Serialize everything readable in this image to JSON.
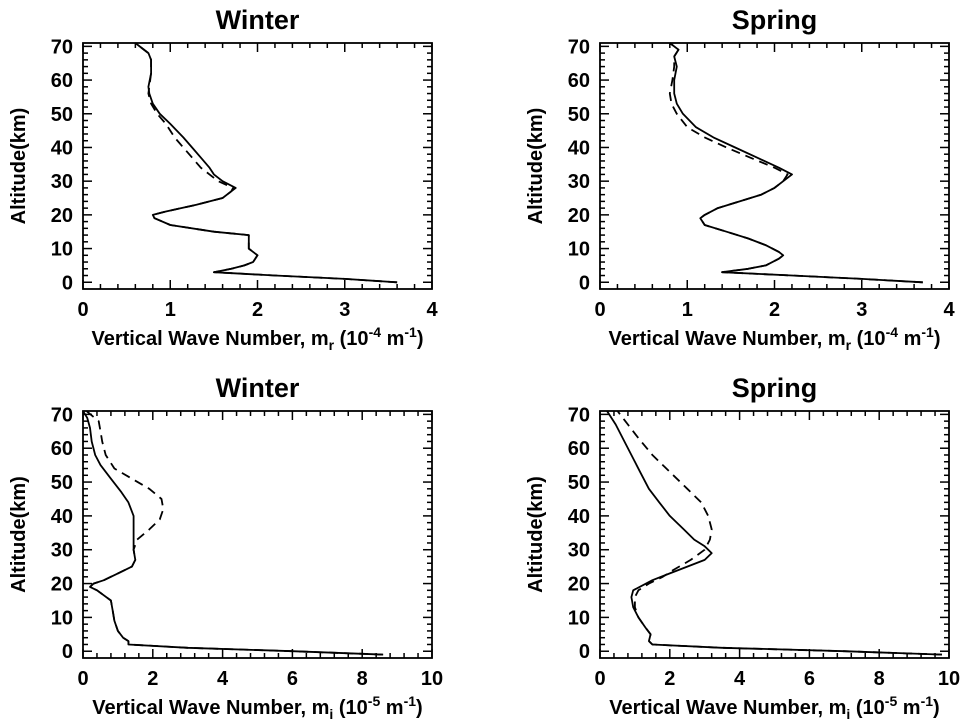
{
  "chart_data": [
    {
      "type": "line",
      "title": "Winter",
      "xlabel": {
        "main": "Vertical Wave Number, m",
        "sub": "r",
        "unit_open": " (10",
        "unit_exp": "-4",
        "unit_mid": " m",
        "unit_exp2": "-1",
        "unit_close": ")"
      },
      "ylabel": "Altitude(km)",
      "xlim": [
        0,
        4
      ],
      "ylim": [
        -2,
        71
      ],
      "xticks": [
        0,
        1,
        2,
        3,
        4
      ],
      "yticks": [
        0,
        10,
        20,
        30,
        40,
        50,
        60,
        70
      ],
      "series": [
        {
          "style": "solid",
          "points": [
            [
              3.6,
              0
            ],
            [
              3.0,
              1
            ],
            [
              2.2,
              2
            ],
            [
              1.5,
              3
            ],
            [
              1.7,
              4
            ],
            [
              1.85,
              5
            ],
            [
              1.95,
              6
            ],
            [
              2.0,
              8
            ],
            [
              1.95,
              9
            ],
            [
              1.9,
              10
            ],
            [
              1.9,
              12
            ],
            [
              1.9,
              14
            ],
            [
              1.5,
              15
            ],
            [
              1.0,
              17
            ],
            [
              0.82,
              19
            ],
            [
              0.8,
              20
            ],
            [
              0.95,
              21
            ],
            [
              1.3,
              23
            ],
            [
              1.6,
              25
            ],
            [
              1.7,
              27
            ],
            [
              1.75,
              28
            ],
            [
              1.6,
              30
            ],
            [
              1.5,
              32
            ],
            [
              1.45,
              34
            ],
            [
              1.35,
              37
            ],
            [
              1.25,
              40
            ],
            [
              1.15,
              43
            ],
            [
              1.0,
              47
            ],
            [
              0.88,
              50
            ],
            [
              0.8,
              53
            ],
            [
              0.76,
              56
            ],
            [
              0.75,
              58
            ],
            [
              0.78,
              62
            ],
            [
              0.78,
              66
            ],
            [
              0.75,
              68
            ],
            [
              0.6,
              71
            ]
          ]
        },
        {
          "style": "dashed",
          "points": [
            [
              3.6,
              0
            ],
            [
              3.0,
              1
            ],
            [
              2.2,
              2
            ],
            [
              1.5,
              3
            ],
            [
              1.7,
              4
            ],
            [
              1.85,
              5
            ],
            [
              1.95,
              6
            ],
            [
              2.0,
              8
            ],
            [
              1.95,
              9
            ],
            [
              1.9,
              10
            ],
            [
              1.9,
              12
            ],
            [
              1.9,
              14
            ],
            [
              1.5,
              15
            ],
            [
              1.0,
              17
            ],
            [
              0.82,
              19
            ],
            [
              0.8,
              20
            ],
            [
              0.95,
              21
            ],
            [
              1.3,
              23
            ],
            [
              1.6,
              25
            ],
            [
              1.7,
              27
            ],
            [
              1.72,
              28
            ],
            [
              1.55,
              30
            ],
            [
              1.45,
              32
            ],
            [
              1.35,
              34
            ],
            [
              1.25,
              37
            ],
            [
              1.15,
              40
            ],
            [
              1.05,
              43
            ],
            [
              0.95,
              47
            ],
            [
              0.85,
              50
            ],
            [
              0.78,
              53
            ],
            [
              0.75,
              56
            ],
            [
              0.76,
              58
            ],
            [
              0.78,
              62
            ],
            [
              0.78,
              66
            ],
            [
              0.75,
              68
            ],
            [
              0.6,
              71
            ]
          ]
        }
      ]
    },
    {
      "type": "line",
      "title": "Spring",
      "xlabel": {
        "main": "Vertical Wave Number, m",
        "sub": "r",
        "unit_open": " (10",
        "unit_exp": "-4",
        "unit_mid": " m",
        "unit_exp2": "-1",
        "unit_close": ")"
      },
      "ylabel": "Altitude(km)",
      "xlim": [
        0,
        4
      ],
      "ylim": [
        -2,
        71
      ],
      "xticks": [
        0,
        1,
        2,
        3,
        4
      ],
      "yticks": [
        0,
        10,
        20,
        30,
        40,
        50,
        60,
        70
      ],
      "series": [
        {
          "style": "solid",
          "points": [
            [
              3.7,
              0
            ],
            [
              3.0,
              1
            ],
            [
              2.2,
              2
            ],
            [
              1.4,
              3
            ],
            [
              1.7,
              4
            ],
            [
              1.9,
              5
            ],
            [
              2.05,
              7
            ],
            [
              2.1,
              8
            ],
            [
              2.05,
              9
            ],
            [
              1.9,
              11
            ],
            [
              1.7,
              13
            ],
            [
              1.45,
              15
            ],
            [
              1.2,
              17
            ],
            [
              1.15,
              19
            ],
            [
              1.2,
              20
            ],
            [
              1.35,
              22
            ],
            [
              1.6,
              24
            ],
            [
              1.85,
              26
            ],
            [
              2.0,
              28
            ],
            [
              2.1,
              30
            ],
            [
              2.2,
              32
            ],
            [
              2.05,
              34
            ],
            [
              1.8,
              37
            ],
            [
              1.55,
              40
            ],
            [
              1.3,
              43
            ],
            [
              1.1,
              46
            ],
            [
              0.95,
              50
            ],
            [
              0.88,
              53
            ],
            [
              0.85,
              56
            ],
            [
              0.85,
              60
            ],
            [
              0.88,
              64
            ],
            [
              0.85,
              67
            ],
            [
              0.9,
              69
            ],
            [
              0.8,
              71
            ]
          ]
        },
        {
          "style": "dashed",
          "points": [
            [
              3.7,
              0
            ],
            [
              3.0,
              1
            ],
            [
              2.2,
              2
            ],
            [
              1.4,
              3
            ],
            [
              1.7,
              4
            ],
            [
              1.9,
              5
            ],
            [
              2.05,
              7
            ],
            [
              2.1,
              8
            ],
            [
              2.05,
              9
            ],
            [
              1.9,
              11
            ],
            [
              1.7,
              13
            ],
            [
              1.45,
              15
            ],
            [
              1.2,
              17
            ],
            [
              1.15,
              19
            ],
            [
              1.2,
              20
            ],
            [
              1.35,
              22
            ],
            [
              1.6,
              24
            ],
            [
              1.85,
              26
            ],
            [
              2.0,
              28
            ],
            [
              2.1,
              30
            ],
            [
              2.15,
              32
            ],
            [
              2.0,
              34
            ],
            [
              1.72,
              37
            ],
            [
              1.45,
              40
            ],
            [
              1.2,
              43
            ],
            [
              1.0,
              46
            ],
            [
              0.88,
              50
            ],
            [
              0.82,
              53
            ],
            [
              0.8,
              56
            ],
            [
              0.83,
              60
            ],
            [
              0.85,
              64
            ],
            [
              0.85,
              67
            ],
            [
              0.9,
              69
            ],
            [
              0.8,
              71
            ]
          ]
        }
      ]
    },
    {
      "type": "line",
      "title": "Winter",
      "xlabel": {
        "main": "Vertical Wave Number, m",
        "sub": "i",
        "unit_open": " (10",
        "unit_exp": "-5",
        "unit_mid": " m",
        "unit_exp2": "-1",
        "unit_close": ")"
      },
      "ylabel": "Altitude(km)",
      "xlim": [
        0,
        10
      ],
      "ylim": [
        -2,
        71
      ],
      "xticks": [
        0,
        2,
        4,
        6,
        8,
        10
      ],
      "yticks": [
        0,
        10,
        20,
        30,
        40,
        50,
        60,
        70
      ],
      "series": [
        {
          "style": "solid",
          "points": [
            [
              8.6,
              -1
            ],
            [
              6.0,
              0
            ],
            [
              3.0,
              1
            ],
            [
              1.3,
              2
            ],
            [
              1.3,
              3
            ],
            [
              1.15,
              4
            ],
            [
              1.0,
              6
            ],
            [
              0.9,
              9
            ],
            [
              0.85,
              12
            ],
            [
              0.8,
              15
            ],
            [
              0.4,
              18
            ],
            [
              0.2,
              19
            ],
            [
              0.3,
              20
            ],
            [
              0.6,
              21
            ],
            [
              1.0,
              23
            ],
            [
              1.4,
              25
            ],
            [
              1.5,
              27
            ],
            [
              1.45,
              30
            ],
            [
              1.45,
              35
            ],
            [
              1.45,
              40
            ],
            [
              1.3,
              44
            ],
            [
              1.1,
              47
            ],
            [
              0.8,
              51
            ],
            [
              0.5,
              55
            ],
            [
              0.35,
              58
            ],
            [
              0.25,
              62
            ],
            [
              0.2,
              66
            ],
            [
              0.12,
              69
            ],
            [
              0.0,
              71
            ]
          ]
        },
        {
          "style": "dashed",
          "points": [
            [
              8.6,
              -1
            ],
            [
              6.0,
              0
            ],
            [
              3.0,
              1
            ],
            [
              1.3,
              2
            ],
            [
              1.3,
              3
            ],
            [
              1.15,
              4
            ],
            [
              1.0,
              6
            ],
            [
              0.9,
              9
            ],
            [
              0.85,
              12
            ],
            [
              0.8,
              15
            ],
            [
              0.4,
              18
            ],
            [
              0.2,
              19
            ],
            [
              0.3,
              20
            ],
            [
              0.6,
              21
            ],
            [
              1.0,
              23
            ],
            [
              1.4,
              25
            ],
            [
              1.5,
              27
            ],
            [
              1.45,
              30
            ],
            [
              1.55,
              33
            ],
            [
              1.9,
              36
            ],
            [
              2.2,
              39
            ],
            [
              2.3,
              42
            ],
            [
              2.25,
              45
            ],
            [
              1.9,
              48
            ],
            [
              1.4,
              51
            ],
            [
              0.9,
              54
            ],
            [
              0.65,
              58
            ],
            [
              0.55,
              62
            ],
            [
              0.5,
              65
            ],
            [
              0.45,
              68
            ],
            [
              0.1,
              71
            ]
          ]
        }
      ]
    },
    {
      "type": "line",
      "title": "Spring",
      "xlabel": {
        "main": "Vertical Wave Number, m",
        "sub": "i",
        "unit_open": " (10",
        "unit_exp": "-5",
        "unit_mid": " m",
        "unit_exp2": "-1",
        "unit_close": ")"
      },
      "ylabel": "Altitude(km)",
      "xlim": [
        0,
        10
      ],
      "ylim": [
        -2,
        71
      ],
      "xticks": [
        0,
        2,
        4,
        6,
        8,
        10
      ],
      "yticks": [
        0,
        10,
        20,
        30,
        40,
        50,
        60,
        70
      ],
      "series": [
        {
          "style": "solid",
          "points": [
            [
              9.8,
              -1
            ],
            [
              7.0,
              0
            ],
            [
              3.5,
              1
            ],
            [
              1.5,
              2
            ],
            [
              1.4,
              3
            ],
            [
              1.45,
              5
            ],
            [
              1.3,
              7
            ],
            [
              1.1,
              10
            ],
            [
              0.95,
              13
            ],
            [
              0.9,
              16
            ],
            [
              0.95,
              18
            ],
            [
              1.5,
              21
            ],
            [
              2.0,
              23
            ],
            [
              2.5,
              25
            ],
            [
              3.0,
              27
            ],
            [
              3.2,
              29
            ],
            [
              3.0,
              31
            ],
            [
              2.7,
              33
            ],
            [
              2.4,
              36
            ],
            [
              2.0,
              40
            ],
            [
              1.7,
              44
            ],
            [
              1.4,
              48
            ],
            [
              1.15,
              53
            ],
            [
              0.9,
              58
            ],
            [
              0.65,
              63
            ],
            [
              0.45,
              67
            ],
            [
              0.2,
              71
            ]
          ]
        },
        {
          "style": "dashed",
          "points": [
            [
              9.8,
              -1
            ],
            [
              7.0,
              0
            ],
            [
              3.5,
              1
            ],
            [
              1.5,
              2
            ],
            [
              1.4,
              3
            ],
            [
              1.45,
              5
            ],
            [
              1.3,
              7
            ],
            [
              1.1,
              10
            ],
            [
              1.0,
              13
            ],
            [
              1.0,
              16
            ],
            [
              1.1,
              18
            ],
            [
              1.4,
              20
            ],
            [
              1.8,
              22
            ],
            [
              2.1,
              24
            ],
            [
              2.6,
              27
            ],
            [
              3.0,
              30
            ],
            [
              3.15,
              33
            ],
            [
              3.2,
              36
            ],
            [
              3.1,
              40
            ],
            [
              2.9,
              44
            ],
            [
              2.5,
              48
            ],
            [
              2.0,
              53
            ],
            [
              1.5,
              58
            ],
            [
              1.1,
              63
            ],
            [
              0.8,
              67
            ],
            [
              0.5,
              71
            ]
          ]
        }
      ]
    }
  ]
}
